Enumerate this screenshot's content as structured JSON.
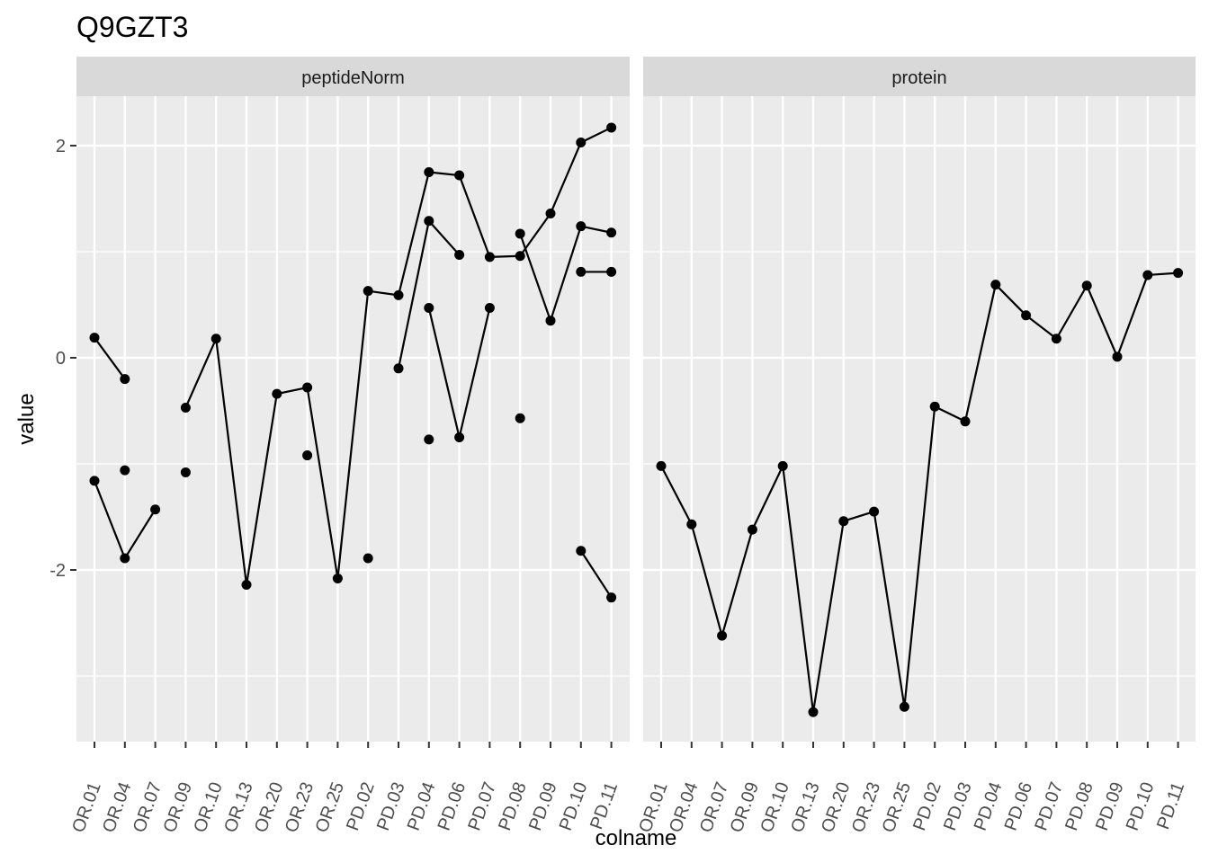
{
  "chart_data": {
    "type": "line",
    "title": "Q9GZT3",
    "xlabel": "colname",
    "ylabel": "value",
    "ylim": [
      -3.6,
      2.45
    ],
    "yticks": [
      2,
      0,
      -2
    ],
    "ytick_labels": [
      "2",
      "0",
      "-2"
    ],
    "grid": true,
    "categories": [
      "OR.01",
      "OR.04",
      "OR.07",
      "OR.09",
      "OR.10",
      "OR.13",
      "OR.20",
      "OR.23",
      "OR.25",
      "PD.02",
      "PD.03",
      "PD.04",
      "PD.06",
      "PD.07",
      "PD.08",
      "PD.09",
      "PD.10",
      "PD.11"
    ],
    "panels": [
      {
        "label": "peptideNorm",
        "series": [
          {
            "values": [
              0.19,
              -0.2,
              null,
              -0.47,
              0.18,
              -2.14,
              -0.34,
              -0.28,
              -2.08,
              0.63,
              0.59,
              1.75,
              1.72,
              0.95,
              0.96,
              1.36,
              2.03,
              2.17
            ]
          },
          {
            "values": [
              -1.16,
              -1.89,
              -1.43,
              null,
              null,
              null,
              null,
              null,
              null,
              null,
              -0.1,
              1.29,
              0.97,
              null,
              1.17,
              0.35,
              1.24,
              1.18
            ]
          },
          {
            "values": [
              null,
              null,
              null,
              null,
              null,
              null,
              null,
              null,
              null,
              null,
              null,
              0.47,
              -0.75,
              0.47,
              null,
              null,
              null,
              null
            ]
          },
          {
            "values": [
              null,
              null,
              null,
              null,
              null,
              null,
              null,
              null,
              null,
              null,
              null,
              null,
              null,
              null,
              null,
              null,
              0.81,
              0.81
            ]
          },
          {
            "values": [
              null,
              null,
              null,
              null,
              null,
              null,
              null,
              null,
              null,
              null,
              null,
              null,
              null,
              null,
              null,
              null,
              -1.82,
              -2.26
            ]
          },
          {
            "values": [
              null,
              -1.06,
              null,
              -1.08,
              null,
              null,
              null,
              -0.92,
              null,
              -1.89,
              null,
              -0.77,
              null,
              null,
              -0.57,
              null,
              null,
              null
            ]
          }
        ]
      },
      {
        "label": "protein",
        "series": [
          {
            "values": [
              -1.02,
              -1.57,
              -2.62,
              -1.62,
              -1.02,
              -3.34,
              -1.54,
              -1.45,
              -3.29,
              -0.46,
              -0.6,
              0.69,
              0.4,
              0.18,
              0.68,
              0.01,
              0.78,
              0.8
            ]
          }
        ]
      }
    ]
  }
}
